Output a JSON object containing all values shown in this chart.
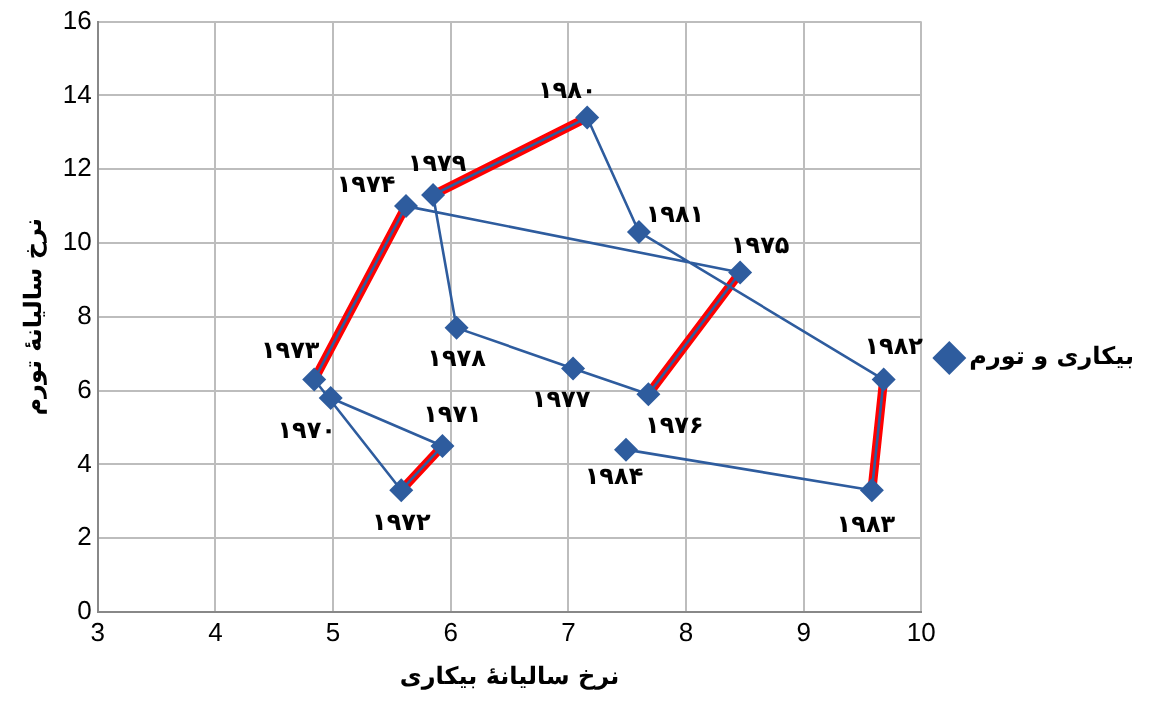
{
  "chart_data": {
    "type": "scatter",
    "xlabel": "نرخ سالیانهٔ بیکاری",
    "ylabel": "نرخ سالیانهٔ تورم",
    "xlim": [
      3,
      10
    ],
    "ylim": [
      0,
      16
    ],
    "xticks": [
      3,
      4,
      5,
      6,
      7,
      8,
      9,
      10
    ],
    "yticks": [
      0,
      2,
      4,
      6,
      8,
      10,
      12,
      14,
      16
    ],
    "grid": true,
    "legend": "right",
    "marker": "diamond",
    "line_style": "solid",
    "series": [
      {
        "name": "بیکاری و تورم",
        "type": "line",
        "color": "#2e5c9e",
        "x": [
          4.98,
          5.93,
          5.58,
          4.84,
          5.62,
          8.46,
          7.68,
          7.04,
          6.05,
          5.85,
          7.16,
          7.6,
          9.68,
          9.58,
          7.49
        ],
        "values": [
          5.8,
          4.5,
          3.3,
          6.3,
          11.0,
          9.2,
          5.9,
          6.6,
          7.7,
          11.3,
          13.4,
          10.3,
          6.3,
          3.3,
          4.4
        ]
      },
      {
        "type": "line",
        "marker": "none",
        "color": "#ff0000",
        "x": [
          5.93,
          5.58
        ],
        "values": [
          4.5,
          3.3
        ]
      },
      {
        "type": "line",
        "marker": "none",
        "color": "#ff0000",
        "x": [
          4.84,
          5.62
        ],
        "values": [
          6.3,
          11.0
        ]
      },
      {
        "type": "line",
        "marker": "none",
        "color": "#ff0000",
        "x": [
          8.46,
          7.68
        ],
        "values": [
          9.2,
          5.9
        ]
      },
      {
        "type": "line",
        "marker": "none",
        "color": "#ff0000",
        "x": [
          5.85,
          7.16
        ],
        "values": [
          11.3,
          13.4
        ]
      },
      {
        "type": "line",
        "marker": "none",
        "color": "#ff0000",
        "x": [
          9.68,
          9.58
        ],
        "values": [
          6.3,
          3.3
        ]
      }
    ],
    "annotations": [
      {
        "text": "۱۹۷۰",
        "x": 4.98,
        "y": 5.8
      },
      {
        "text": "۱۹۷۱",
        "x": 5.93,
        "y": 4.5
      },
      {
        "text": "۱۹۷۲",
        "x": 5.58,
        "y": 3.3
      },
      {
        "text": "۱۹۷۳",
        "x": 4.84,
        "y": 6.3
      },
      {
        "text": "۱۹۷۴",
        "x": 5.62,
        "y": 11.0
      },
      {
        "text": "۱۹۷۵",
        "x": 8.46,
        "y": 9.2
      },
      {
        "text": "۱۹۷۶",
        "x": 7.68,
        "y": 5.9
      },
      {
        "text": "۱۹۷۷",
        "x": 7.04,
        "y": 6.6
      },
      {
        "text": "۱۹۷۸",
        "x": 6.05,
        "y": 7.7
      },
      {
        "text": "۱۹۷۹",
        "x": 5.85,
        "y": 11.3
      },
      {
        "text": "۱۹۸۰",
        "x": 7.16,
        "y": 13.4
      },
      {
        "text": "۱۹۸۱",
        "x": 7.6,
        "y": 10.3
      },
      {
        "text": "۱۹۸۲",
        "x": 9.68,
        "y": 6.3
      },
      {
        "text": "۱۹۸۳",
        "x": 9.58,
        "y": 3.3
      },
      {
        "text": "۱۹۸۴",
        "x": 7.49,
        "y": 4.4
      }
    ]
  }
}
